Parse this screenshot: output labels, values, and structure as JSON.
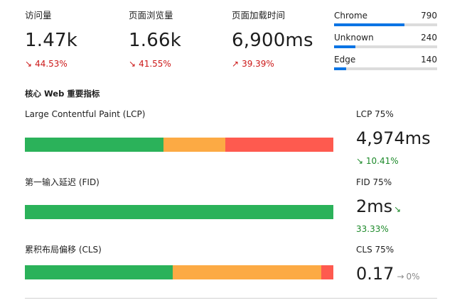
{
  "stats": [
    {
      "label": "访问量",
      "value": "1.47k",
      "arrow": "↘",
      "delta": "44.53%"
    },
    {
      "label": "页面浏览量",
      "value": "1.66k",
      "arrow": "↘",
      "delta": "41.55%"
    },
    {
      "label": "页面加载时间",
      "value": "6,900ms",
      "arrow": "↗",
      "delta": "39.39%"
    }
  ],
  "browsers": [
    {
      "name": "Chrome",
      "count": "790",
      "share": 0.68
    },
    {
      "name": "Unknown",
      "count": "240",
      "share": 0.21
    },
    {
      "name": "Edge",
      "count": "140",
      "share": 0.12
    }
  ],
  "section_title": "核心 Web 重要指标",
  "vitals": [
    {
      "label": "Large Contentful Paint (LCP)",
      "percentile_label": "LCP 75%",
      "value": "4,974ms",
      "delta_arrow": "↘",
      "delta": "10.41%",
      "segments": {
        "good": 0.45,
        "mid": 0.2,
        "bad": 0.35
      }
    },
    {
      "label": "第一输入延迟 (FID)",
      "percentile_label": "FID 75%",
      "value": "2ms",
      "delta_arrow": "↘",
      "delta": "33.33%",
      "segments": {
        "good": 1.0,
        "mid": 0.0,
        "bad": 0.0
      }
    },
    {
      "label": "累积布局偏移 (CLS)",
      "percentile_label": "CLS 75%",
      "value": "0.17",
      "delta_arrow": "→",
      "delta": "0%",
      "segments": {
        "good": 0.48,
        "mid": 0.48,
        "bad": 0.04
      }
    }
  ],
  "colors": {
    "good": "#2bb25a",
    "mid": "#fcaa44",
    "bad": "#fe5a4f",
    "accent": "#0a74e4",
    "negative": "#cc1818",
    "positive": "#1d8a2a"
  }
}
